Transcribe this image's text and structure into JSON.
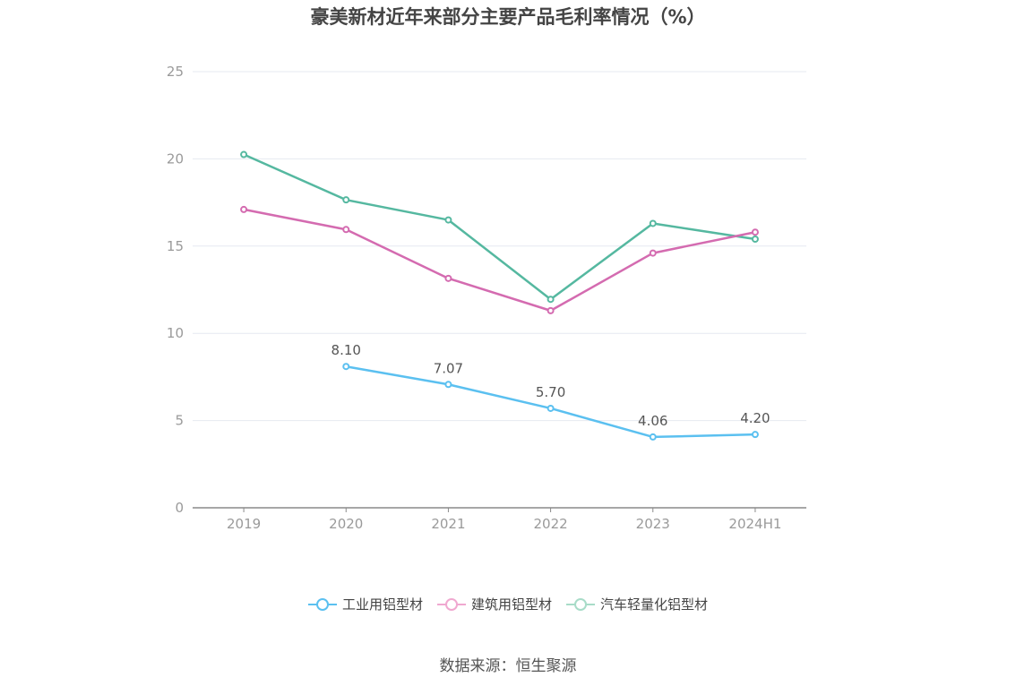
{
  "chart_data": {
    "type": "line",
    "title": "豪美新材近年来部分主要产品毛利率情况（%）",
    "categories": [
      "2019",
      "2020",
      "2021",
      "2022",
      "2023",
      "2024H1"
    ],
    "ylim": [
      0,
      25
    ],
    "yticks": [
      "0",
      "5",
      "10",
      "15",
      "20",
      "25"
    ],
    "grid": true,
    "legend_position": "bottom",
    "series": [
      {
        "name": "工业用铝型材",
        "color": "#5bc0f0",
        "values": [
          null,
          8.1,
          7.07,
          5.7,
          4.06,
          4.2
        ],
        "labels": [
          "",
          "8.10",
          "7.07",
          "5.70",
          "4.06",
          "4.20"
        ]
      },
      {
        "name": "建筑用铝型材",
        "color": "#d46bb0",
        "values": [
          17.1,
          15.95,
          13.15,
          11.3,
          14.6,
          15.8
        ]
      },
      {
        "name": "汽车轻量化铝型材",
        "color": "#55b8a0",
        "values": [
          20.25,
          17.65,
          16.5,
          11.95,
          16.3,
          15.4
        ]
      }
    ]
  },
  "legend_items": [
    {
      "label": "工业用铝型材",
      "color": "#5bc0f0"
    },
    {
      "label": "建筑用铝型材",
      "color": "#f0a8d0"
    },
    {
      "label": "汽车轻量化铝型材",
      "color": "#a8dcc8"
    }
  ],
  "source": "数据来源：恒生聚源"
}
